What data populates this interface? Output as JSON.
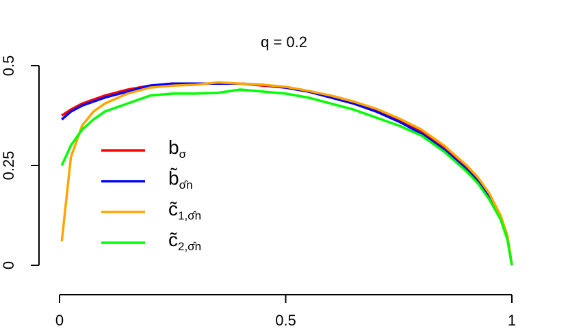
{
  "chart_data": {
    "type": "line",
    "title": "q = 0.2",
    "x": [
      0.005,
      0.025,
      0.05,
      0.075,
      0.1,
      0.15,
      0.2,
      0.25,
      0.3,
      0.35,
      0.4,
      0.45,
      0.5,
      0.55,
      0.6,
      0.65,
      0.7,
      0.75,
      0.8,
      0.85,
      0.9,
      0.925,
      0.95,
      0.975,
      0.99,
      1
    ],
    "series": [
      {
        "name": "b",
        "subscript": "σ",
        "color": "#ff0000",
        "values": [
          0.375,
          0.39,
          0.405,
          0.415,
          0.425,
          0.44,
          0.45,
          0.455,
          0.455,
          0.455,
          0.455,
          0.45,
          0.445,
          0.435,
          0.425,
          0.41,
          0.39,
          0.365,
          0.335,
          0.295,
          0.245,
          0.215,
          0.175,
          0.12,
          0.07,
          0
        ]
      },
      {
        "name": "b̃",
        "subscript": "σ̂n",
        "color": "#0000ff",
        "values": [
          0.365,
          0.385,
          0.4,
          0.41,
          0.42,
          0.435,
          0.45,
          0.455,
          0.455,
          0.455,
          0.455,
          0.452,
          0.445,
          0.435,
          0.42,
          0.405,
          0.385,
          0.36,
          0.33,
          0.29,
          0.24,
          0.21,
          0.17,
          0.12,
          0.07,
          0
        ]
      },
      {
        "name": "c̃",
        "subscript": "1,σ̂n",
        "color": "#ffa500",
        "values": [
          0.06,
          0.27,
          0.35,
          0.385,
          0.405,
          0.43,
          0.445,
          0.45,
          0.452,
          0.458,
          0.455,
          0.452,
          0.447,
          0.437,
          0.425,
          0.41,
          0.392,
          0.368,
          0.34,
          0.3,
          0.25,
          0.22,
          0.18,
          0.125,
          0.075,
          0
        ]
      },
      {
        "name": "c̃",
        "subscript": "2,σ̂n",
        "color": "#00ff00",
        "values": [
          0.25,
          0.3,
          0.34,
          0.365,
          0.385,
          0.405,
          0.425,
          0.43,
          0.43,
          0.432,
          0.44,
          0.435,
          0.43,
          0.42,
          0.405,
          0.39,
          0.37,
          0.35,
          0.325,
          0.285,
          0.235,
          0.205,
          0.165,
          0.115,
          0.065,
          0
        ]
      }
    ],
    "xlim": [
      0,
      1
    ],
    "xticks": [
      0,
      0.5,
      1
    ],
    "ylim": [
      0,
      0.5
    ],
    "yticks": [
      0,
      0.25,
      0.5
    ]
  }
}
